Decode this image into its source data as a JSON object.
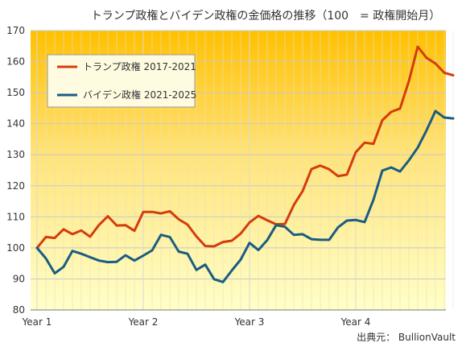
{
  "chart_data": {
    "type": "line",
    "title": "トランプ政権とバイデン政権の金価格の推移（100　= 政権開始月）",
    "source": "出典元：  BullionVault",
    "ylim": [
      80,
      170
    ],
    "y_ticks": [
      80,
      90,
      100,
      110,
      120,
      130,
      140,
      150,
      160,
      170
    ],
    "x_ticks": [
      {
        "month": 0,
        "label": "Year 1"
      },
      {
        "month": 12,
        "label": "Year 2"
      },
      {
        "month": 24,
        "label": "Year 3"
      },
      {
        "month": 36,
        "label": "Year 4"
      }
    ],
    "grid": true,
    "legend_position": "upper-left",
    "series": [
      {
        "name": "トランプ政権 2017-2021",
        "color": "#d43c0c",
        "values": [
          100,
          103.5,
          103.2,
          106,
          104.4,
          105.6,
          103.6,
          107.4,
          110.2,
          107.2,
          107.3,
          105.5,
          111.6,
          111.6,
          111.1,
          111.8,
          109.2,
          107.5,
          103.7,
          100.6,
          100.5,
          101.9,
          102.3,
          104.6,
          108.2,
          110.3,
          108.9,
          107.6,
          107.7,
          113.8,
          118.3,
          125.4,
          126.5,
          125.3,
          123.1,
          123.6,
          130.8,
          133.9,
          133.5,
          141.1,
          143.8,
          144.9,
          153.7,
          164.8,
          161.2,
          159.4,
          156.4,
          155.6
        ]
      },
      {
        "name": "バイデン政権 2021-2025",
        "color": "#1a5d82",
        "values": [
          100,
          96.6,
          91.8,
          93.9,
          99.0,
          98.1,
          97.0,
          95.9,
          95.4,
          95.5,
          97.6,
          95.9,
          97.5,
          99.2,
          104.2,
          103.5,
          98.8,
          98.1,
          92.9,
          94.6,
          89.9,
          89.0,
          92.7,
          96.2,
          101.6,
          99.3,
          102.5,
          107.3,
          106.8,
          104.2,
          104.4,
          102.8,
          102.6,
          102.6,
          106.6,
          108.8,
          109.0,
          108.3,
          115.5,
          124.9,
          125.9,
          124.6,
          128.2,
          132.3,
          137.9,
          144.1,
          142.0,
          141.7
        ]
      }
    ]
  }
}
